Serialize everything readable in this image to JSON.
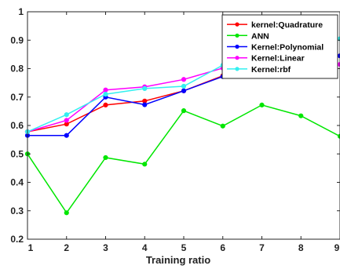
{
  "chart_data": {
    "type": "line",
    "title": "",
    "xlabel": "Training ratio",
    "ylabel": "",
    "xlim": [
      1,
      9
    ],
    "ylim": [
      0.2,
      1
    ],
    "xticks": [
      "1",
      "2",
      "3",
      "4",
      "5",
      "6",
      "7",
      "8",
      "9"
    ],
    "yticks": [
      "0.2",
      "0.3",
      "0.4",
      "0.5",
      "0.6",
      "0.7",
      "0.8",
      "0.9",
      "1"
    ],
    "grid": false,
    "legend_position": "top-right",
    "series": [
      {
        "name": "kernel:Quadrature",
        "color": "#ff0000",
        "x": [
          1,
          2,
          3,
          4,
          5,
          6,
          7,
          8,
          9
        ],
        "y": [
          0.578,
          0.605,
          0.672,
          0.686,
          0.722,
          0.775,
          0.805,
          0.83,
          0.845
        ]
      },
      {
        "name": "ANN",
        "color": "#00e600",
        "x": [
          1,
          2,
          3,
          4,
          5,
          6,
          7,
          8,
          9
        ],
        "y": [
          0.5,
          0.293,
          0.487,
          0.464,
          0.652,
          0.598,
          0.672,
          0.634,
          0.562
        ]
      },
      {
        "name": "Kernel:Polynomial",
        "color": "#0000ff",
        "x": [
          1,
          2,
          3,
          4,
          5,
          6,
          7,
          8,
          9
        ],
        "y": [
          0.565,
          0.565,
          0.7,
          0.673,
          0.722,
          0.772,
          0.8,
          0.83,
          0.845
        ]
      },
      {
        "name": "Kernel:Linear",
        "color": "#ff00ff",
        "x": [
          1,
          2,
          3,
          4,
          5,
          6,
          7,
          8,
          9
        ],
        "y": [
          0.578,
          0.618,
          0.725,
          0.736,
          0.762,
          0.802,
          0.82,
          0.84,
          0.815
        ]
      },
      {
        "name": "Kernel:rbf",
        "color": "#33f0f0",
        "x": [
          1,
          2,
          3,
          4,
          5,
          6,
          7,
          8,
          9
        ],
        "y": [
          0.578,
          0.638,
          0.71,
          0.73,
          0.738,
          0.812,
          0.84,
          0.87,
          0.905
        ]
      }
    ]
  }
}
